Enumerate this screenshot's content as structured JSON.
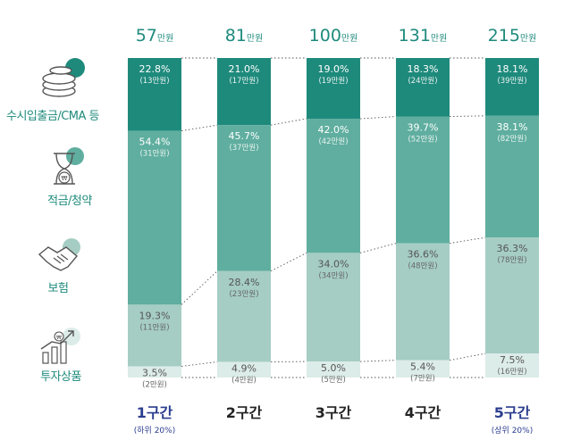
{
  "chart_data": {
    "type": "bar",
    "stacked": true,
    "normalized": true,
    "unit_suffix": "만원",
    "categories": [
      "1구간",
      "2구간",
      "3구간",
      "4구간",
      "5구간"
    ],
    "category_sublabels": [
      "(하위 20%)",
      "",
      "",
      "",
      "(상위 20%)"
    ],
    "category_colors": [
      "#2b3d8f",
      "#222222",
      "#222222",
      "#222222",
      "#2b3d8f"
    ],
    "totals": [
      57,
      81,
      100,
      131,
      215
    ],
    "series": [
      {
        "name": "수시입출금/CMA 등",
        "color": "#1e8a7c",
        "values": [
          22.8,
          21.0,
          19.0,
          18.3,
          18.1
        ],
        "amounts": [
          "(13만원)",
          "(17만원)",
          "(19만원)",
          "(24만원)",
          "(39만원)"
        ]
      },
      {
        "name": "적금/청약",
        "color": "#5fae9f",
        "values": [
          54.4,
          45.7,
          42.0,
          39.7,
          38.1
        ],
        "amounts": [
          "(31만원)",
          "(37만원)",
          "(42만원)",
          "(52만원)",
          "(82만원)"
        ]
      },
      {
        "name": "보험",
        "color": "#a5cdc4",
        "values": [
          19.3,
          28.4,
          34.0,
          36.6,
          36.3
        ],
        "amounts": [
          "(11만원)",
          "(23만원)",
          "(34만원)",
          "(48만원)",
          "(78만원)"
        ]
      },
      {
        "name": "투자상품",
        "color": "#dcece8",
        "values": [
          3.5,
          4.9,
          5.0,
          5.4,
          7.5
        ],
        "amounts": [
          "(2만원)",
          "(4만원)",
          "(5만원)",
          "(7만원)",
          "(16만원)"
        ]
      }
    ],
    "value_suffix": "%",
    "legend": "left",
    "grid": false
  },
  "legend_items": [
    {
      "label": "수시입출금/CMA 등",
      "icon": "coins-icon"
    },
    {
      "label": "적금/청약",
      "icon": "hourglass-won-icon"
    },
    {
      "label": "보험",
      "icon": "handshake-icon"
    },
    {
      "label": "투자상품",
      "icon": "growth-chart-icon"
    }
  ]
}
